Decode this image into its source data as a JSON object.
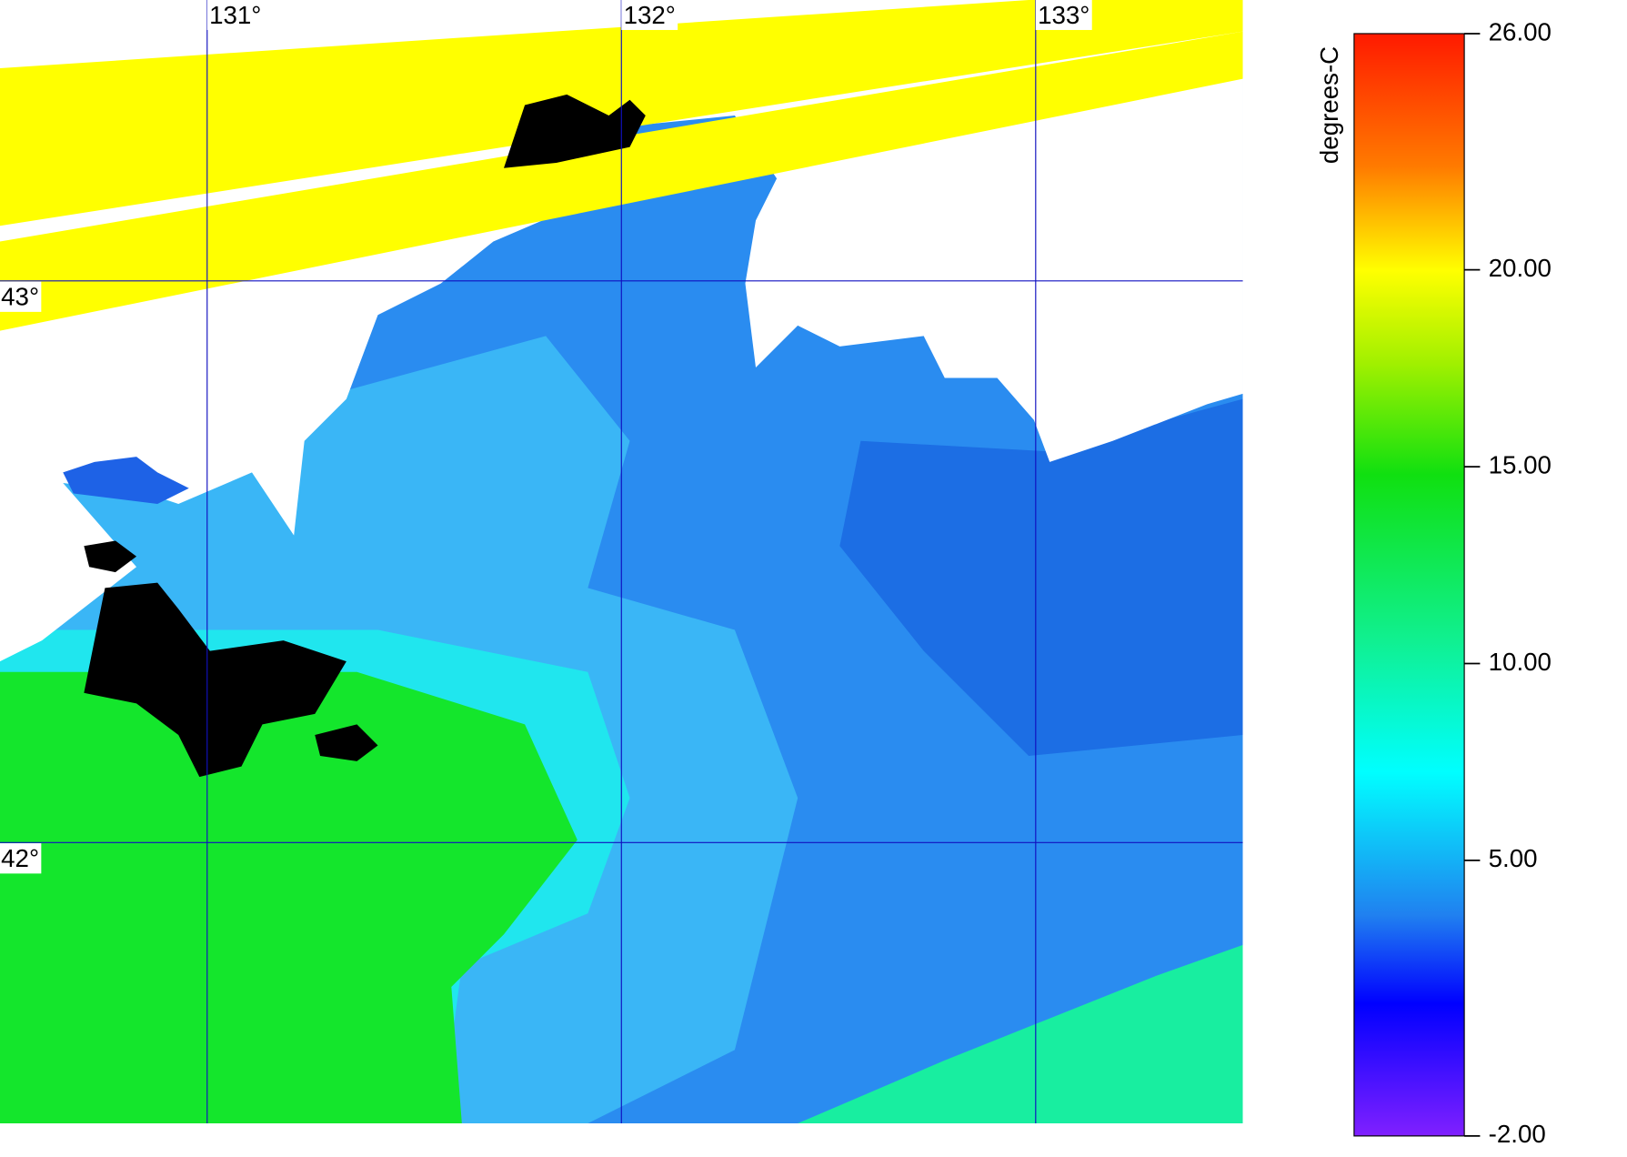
{
  "map": {
    "lon_range": [
      130.5,
      133.5
    ],
    "lat_range": [
      41.5,
      43.5
    ],
    "lon_ticks": [
      {
        "value": 131,
        "label": "131°"
      },
      {
        "value": 132,
        "label": "132°"
      },
      {
        "value": 133,
        "label": "133°"
      }
    ],
    "lat_ticks": [
      {
        "value": 43,
        "label": "43°"
      },
      {
        "value": 42,
        "label": "42°"
      }
    ]
  },
  "colorbar": {
    "title": "degrees-C",
    "range": [
      -2,
      26
    ],
    "ticks": [
      {
        "value": 26,
        "label": "26.00"
      },
      {
        "value": 20,
        "label": "20.00"
      },
      {
        "value": 15,
        "label": "15.00"
      },
      {
        "value": 10,
        "label": "10.00"
      },
      {
        "value": 5,
        "label": "5.00"
      },
      {
        "value": -2,
        "label": "-2.00"
      }
    ]
  }
}
